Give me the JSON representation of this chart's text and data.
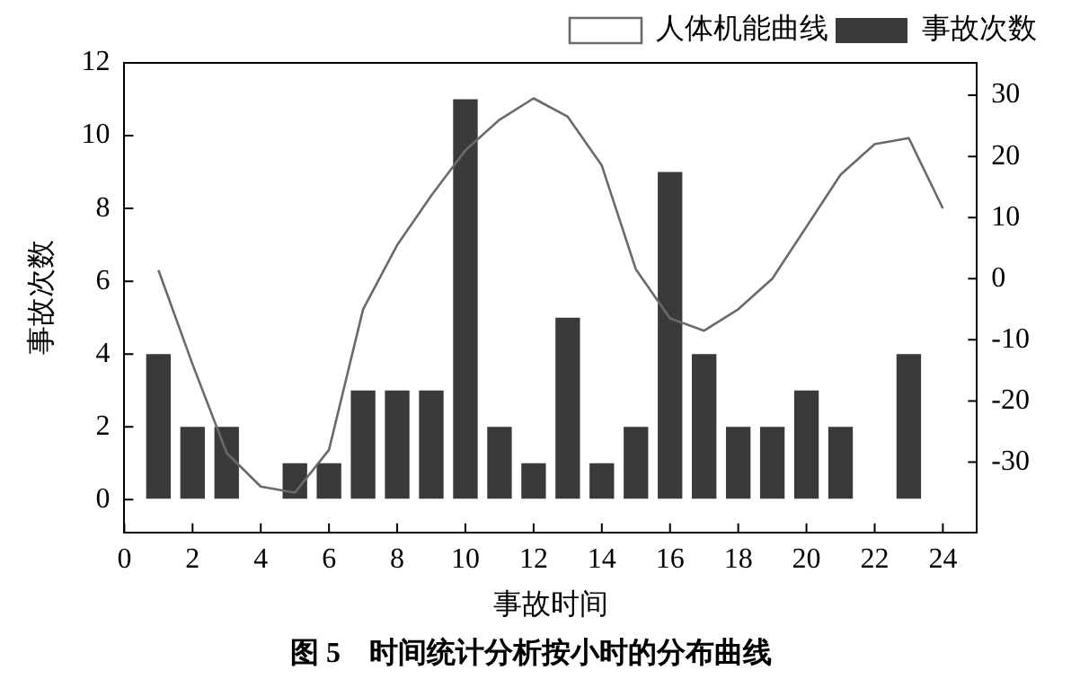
{
  "chart_data": {
    "type": "bar",
    "title": "图 5　时间统计分析按小时的分布曲线",
    "xlabel": "事故时间",
    "ylabel": "事故次数",
    "x": [
      1,
      2,
      3,
      4,
      5,
      6,
      7,
      8,
      9,
      10,
      11,
      12,
      13,
      14,
      15,
      16,
      17,
      18,
      19,
      20,
      21,
      22,
      23,
      24
    ],
    "series": [
      {
        "name": "人体机能曲线",
        "type": "line",
        "axis": "y2",
        "color": "#6a6a6a",
        "values": [
          1.4,
          -14,
          -28.5,
          -34,
          -35,
          -28,
          -5,
          5.5,
          13.6,
          21,
          26,
          29.5,
          26.5,
          18.5,
          1.5,
          -6.5,
          -8.5,
          -5,
          0,
          8.5,
          17,
          22,
          23,
          11.5
        ]
      },
      {
        "name": "事故次数",
        "color": "#3a3a3a",
        "values": [
          4,
          2,
          2,
          0,
          1,
          1,
          3,
          3,
          3,
          11,
          2,
          1,
          5,
          1,
          2,
          9,
          4,
          2,
          2,
          3,
          2,
          0,
          4,
          0
        ]
      }
    ],
    "xlim": [
      0,
      25
    ],
    "xticks": [
      0,
      2,
      4,
      6,
      8,
      10,
      12,
      14,
      16,
      18,
      20,
      22,
      24
    ],
    "ylim": [
      -0.9,
      12
    ],
    "yticks": [
      0,
      2,
      4,
      6,
      8,
      10,
      12
    ],
    "y2lim": [
      -41.5,
      35.3
    ],
    "y2ticks": [
      -30,
      -20,
      -10,
      0,
      10,
      20,
      30
    ],
    "grid": false,
    "legend": "top right",
    "marker": "none",
    "line_style": "solid"
  }
}
